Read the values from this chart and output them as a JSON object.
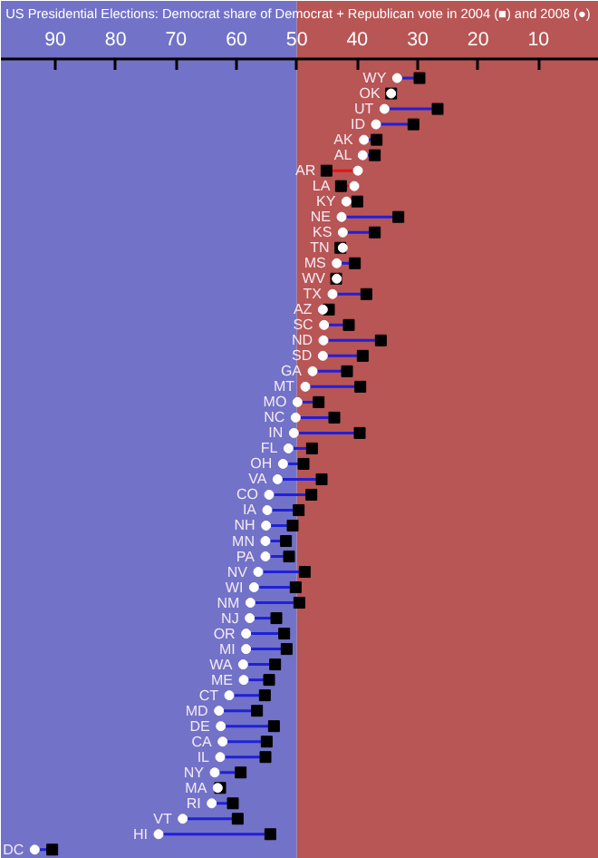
{
  "chart_data": {
    "type": "scatter",
    "orientation": "horizontal",
    "title": "US Presidential Elections: Democrat share of Democrat + Republican  vote in 2004 (■) and 2008 (●)",
    "categories": [
      "WY",
      "OK",
      "UT",
      "ID",
      "AK",
      "AL",
      "AR",
      "LA",
      "KY",
      "NE",
      "KS",
      "TN",
      "MS",
      "WV",
      "TX",
      "AZ",
      "SC",
      "ND",
      "SD",
      "GA",
      "MT",
      "MO",
      "NC",
      "IN",
      "FL",
      "OH",
      "VA",
      "CO",
      "IA",
      "NH",
      "MN",
      "PA",
      "NV",
      "WI",
      "NM",
      "NJ",
      "OR",
      "MI",
      "WA",
      "ME",
      "CT",
      "MD",
      "DE",
      "CA",
      "IL",
      "NY",
      "MA",
      "RI",
      "VT",
      "HI",
      "DC"
    ],
    "series": [
      {
        "color": "#000000",
        "marker": "square",
        "values": [
          29.7,
          34.4,
          26.7,
          30.7,
          36.8,
          37.1,
          45.1,
          42.7,
          40.0,
          33.2,
          37.1,
          42.8,
          40.4,
          43.5,
          38.5,
          44.7,
          41.4,
          36.1,
          39.1,
          41.7,
          39.5,
          46.4,
          43.8,
          39.6,
          47.5,
          48.9,
          45.9,
          47.6,
          49.7,
          50.7,
          51.8,
          51.3,
          48.7,
          50.2,
          49.6,
          53.4,
          52.1,
          51.7,
          53.6,
          54.6,
          55.3,
          56.6,
          53.8,
          55.0,
          55.2,
          59.3,
          62.7,
          60.6,
          59.8,
          54.4,
          90.5
        ]
      },
      {
        "color": "#ffffff",
        "marker": "circle",
        "values": [
          33.4,
          34.4,
          35.5,
          36.9,
          38.9,
          39.1,
          39.9,
          40.5,
          41.8,
          42.6,
          42.4,
          42.4,
          43.4,
          43.4,
          44.1,
          45.7,
          45.5,
          45.6,
          45.7,
          47.4,
          48.6,
          49.9,
          50.2,
          50.5,
          51.4,
          52.3,
          53.2,
          54.6,
          54.9,
          55.1,
          55.2,
          55.2,
          56.4,
          57.1,
          57.7,
          57.8,
          58.4,
          58.4,
          58.9,
          58.8,
          61.2,
          62.9,
          62.6,
          62.3,
          62.7,
          63.6,
          63.1,
          64.1,
          68.9,
          72.9,
          93.4
        ]
      }
    ],
    "xlim": [
      99,
      0
    ],
    "xticks": [
      90,
      80,
      70,
      60,
      50,
      40,
      30,
      20,
      10
    ],
    "bands": [
      {
        "axis": "x",
        "from": 99,
        "to": 50,
        "color": "#7272c8"
      },
      {
        "axis": "x",
        "from": 50,
        "to": 0,
        "color": "#b85555"
      }
    ],
    "tick_labels": "x"
  }
}
